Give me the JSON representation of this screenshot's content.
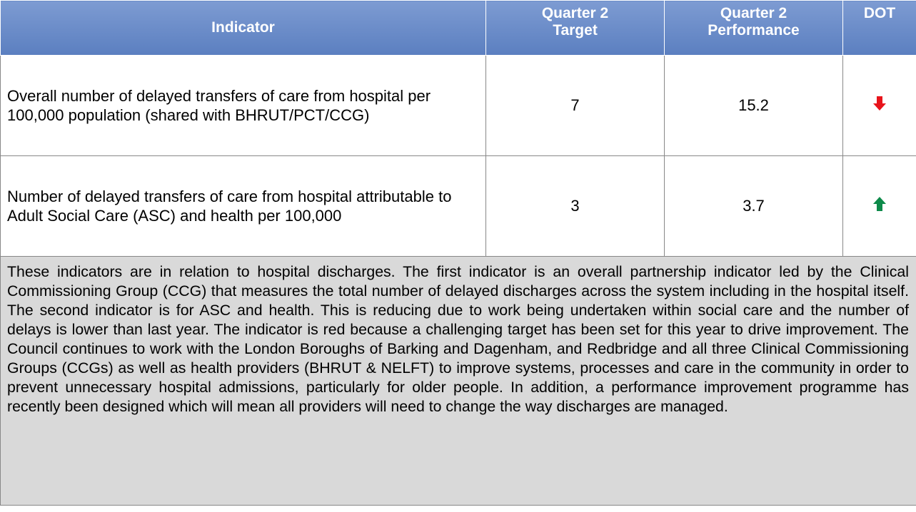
{
  "table": {
    "headers": [
      "Indicator",
      "Quarter 2 Target",
      "Quarter 2 Performance",
      "DOT"
    ],
    "rows": [
      [
        "Overall number of delayed transfers of care from hospital per 100,000 population (shared with BHRUT/PCT/CCG)",
        7,
        15.2
      ],
      [
        "Number of delayed transfers of care from hospital attributable to Adult Social Care (ASC) and health per 100,000",
        3,
        3.7
      ]
    ],
    "note": "These indicators are in relation to hospital discharges. The first indicator is an overall partnership indicator led by the Clinical Commissioning Group (CCG) that measures the total number of delayed discharges across the system including in the hospital itself. The second indicator is for ASC and health. This is reducing due to work being undertaken within social care and the number of delays is lower than last year. The indicator is red because a challenging target has been set for this year to drive improvement. The Council continues to work with the London Boroughs of Barking and Dagenham, and Redbridge and all three Clinical Commissioning Groups (CCGs) as well as health providers (BHRUT & NELFT) to improve systems, processes and care in the community in order to prevent unnecessary hospital admissions, particularly for older people. In addition, a performance improvement programme has recently been designed which will mean all providers will need to change the way discharges are managed."
  }
}
